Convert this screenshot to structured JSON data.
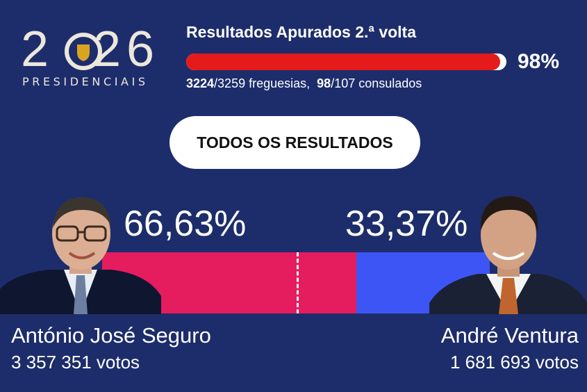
{
  "logo": {
    "year_digits": [
      "2",
      "0",
      "2",
      "6"
    ],
    "subtitle": "PRESIDENCIAIS"
  },
  "header": {
    "title": "Resultados Apurados 2.ª volta",
    "progress_percent": 98,
    "progress_label": "98%",
    "parishes_counted": "3224",
    "parishes_total": "/3259 freguesias,",
    "consulates_counted": "98",
    "consulates_total": "/107 consulados"
  },
  "button": {
    "label": "TODOS OS RESULTADOS"
  },
  "results": {
    "split_fraction": 0.6663,
    "left": {
      "percent_label": "66,63%",
      "name": "António José Seguro",
      "votes": "3 357 351 votos"
    },
    "right": {
      "percent_label": "33,37%",
      "name": "André Ventura",
      "votes": "1 681 693 votos"
    }
  },
  "colors": {
    "background": "#1d2d6b",
    "progress_fill": "#e51b1b",
    "left_bar": "#e51c5e",
    "right_bar": "#3d55f5"
  }
}
